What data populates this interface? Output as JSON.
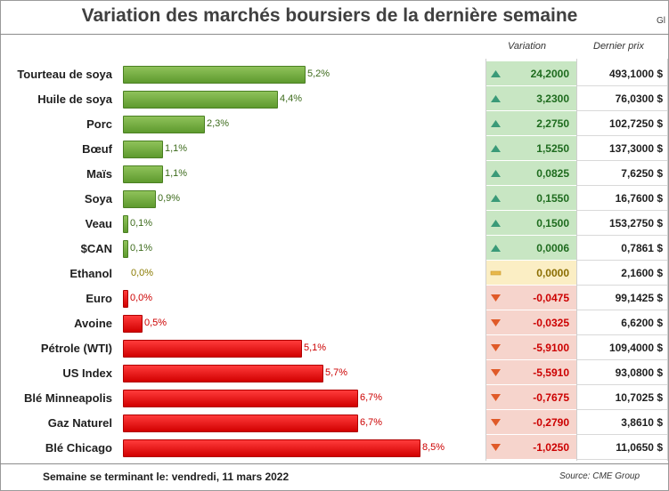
{
  "header": {
    "title": "Variation des marchés boursiers de la dernière semaine",
    "corner_fragment": "Gl",
    "col_variation": "Variation",
    "col_price": "Dernier prix"
  },
  "footer": {
    "week_label": "Semaine se terminant le: vendredi, 11 mars 2022",
    "source": "Source: CME Group"
  },
  "colors": {
    "up_bar": "#6fa83c",
    "down_bar": "#e60000",
    "up_bg": "#c8e6c3",
    "down_bg": "#f6d4cc",
    "flat_bg": "#fbeec4",
    "up_triangle": "#3a9a78",
    "down_triangle": "#e05a28",
    "flat_marker": "#e8b84a"
  },
  "chart_data": {
    "type": "bar",
    "orientation": "horizontal",
    "value_unit": "%",
    "categories": [
      "Tourteau de soya",
      "Huile de soya",
      "Porc",
      "Bœuf",
      "Maïs",
      "Soya",
      "Veau",
      "$CAN",
      "Ethanol",
      "Euro",
      "Avoine",
      "Pétrole (WTI)",
      "US Index",
      "Blé Minneapolis",
      "Gaz Naturel",
      "Blé Chicago"
    ],
    "values": [
      5.2,
      4.4,
      2.3,
      1.1,
      1.1,
      0.9,
      0.1,
      0.1,
      0.0,
      0.0,
      0.5,
      5.1,
      5.7,
      6.7,
      6.7,
      8.5
    ],
    "direction": [
      "up",
      "up",
      "up",
      "up",
      "up",
      "up",
      "up",
      "up",
      "flat",
      "down",
      "down",
      "down",
      "down",
      "down",
      "down",
      "down"
    ],
    "labels": [
      "5,2%",
      "4,4%",
      "2,3%",
      "1,1%",
      "1,1%",
      "0,9%",
      "0,1%",
      "0,1%",
      "0,0%",
      "0,0%",
      "0,5%",
      "5,1%",
      "5,7%",
      "6,7%",
      "6,7%",
      "8,5%"
    ],
    "variation": [
      "24,2000",
      "3,2300",
      "2,2750",
      "1,5250",
      "0,0825",
      "0,1550",
      "0,1500",
      "0,0006",
      "0,0000",
      "-0,0475",
      "-0,0325",
      "-5,9100",
      "-5,5910",
      "-0,7675",
      "-0,2790",
      "-1,0250"
    ],
    "last_price": [
      "493,1000 $",
      "76,0300 $",
      "102,7250 $",
      "137,3000 $",
      "7,6250 $",
      "16,7600 $",
      "153,2750 $",
      "0,7861 $",
      "2,1600 $",
      "99,1425 $",
      "6,6200 $",
      "109,4000 $",
      "93,0800 $",
      "10,7025 $",
      "3,8610 $",
      "11,0650 $"
    ],
    "xlim": [
      0,
      8.5
    ],
    "grid": false,
    "legend": "none"
  }
}
